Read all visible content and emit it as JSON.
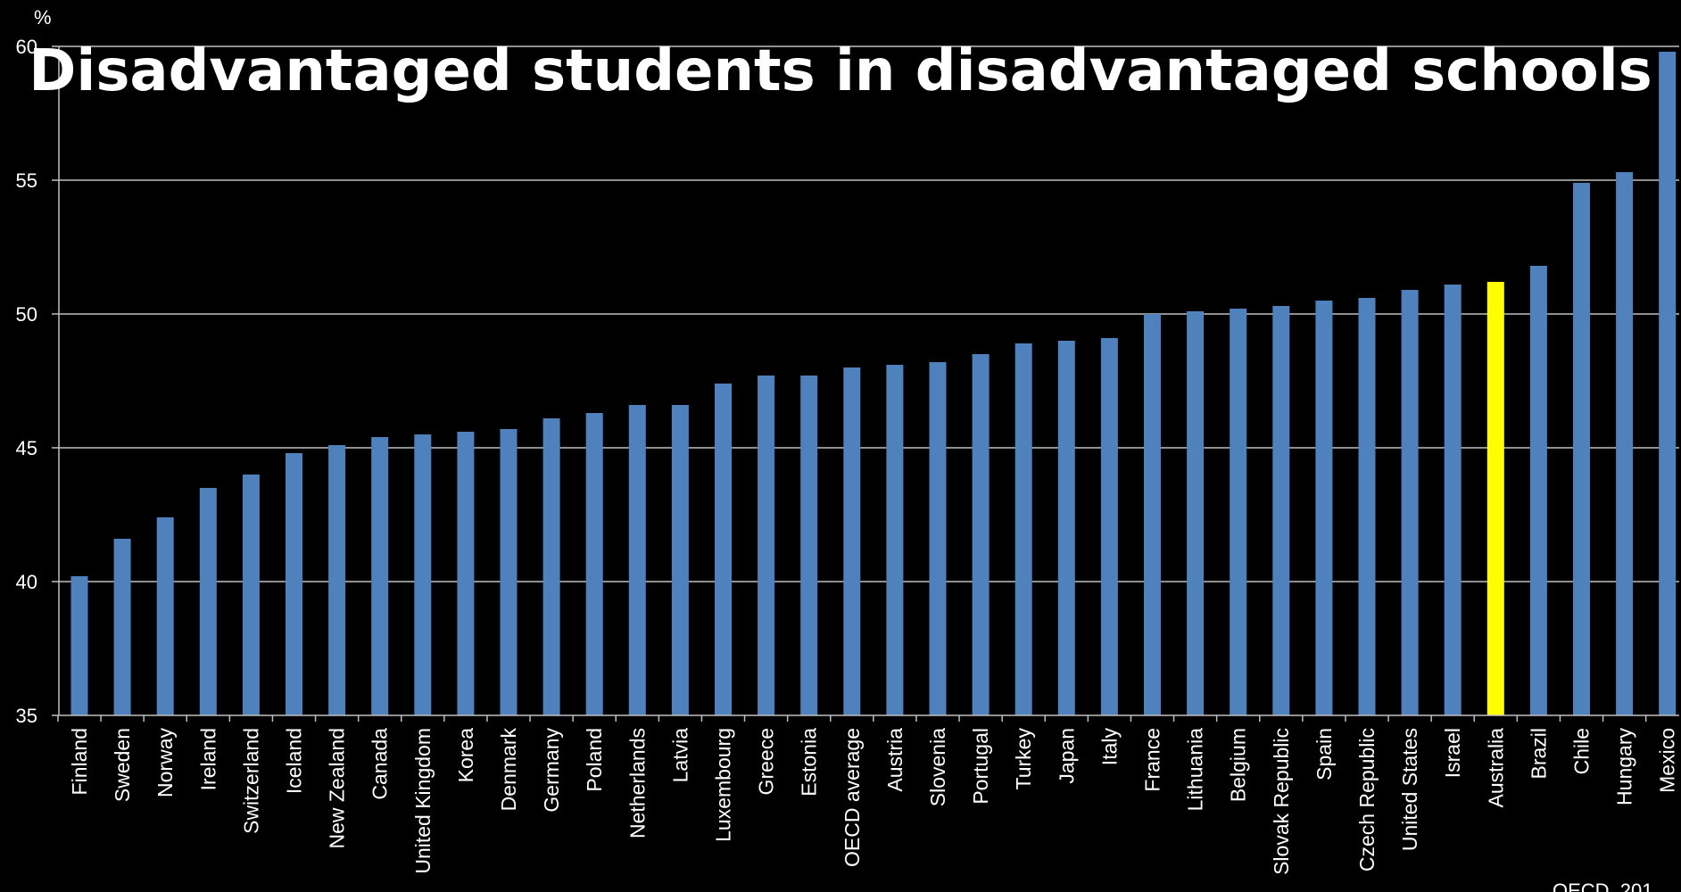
{
  "chart_data": {
    "type": "bar",
    "title": "Disadvantaged students in disadvantaged schools",
    "unit": "%",
    "source": "OECD, 201",
    "ylim": [
      35,
      60
    ],
    "yticks": [
      35,
      40,
      45,
      50,
      55,
      60
    ],
    "grid": true,
    "categories": [
      "Finland",
      "Sweden",
      "Norway",
      "Ireland",
      "Switzerland",
      "Iceland",
      "New Zealand",
      "Canada",
      "United Kingdom",
      "Korea",
      "Denmark",
      "Germany",
      "Poland",
      "Netherlands",
      "Latvia",
      "Luxembourg",
      "Greece",
      "Estonia",
      "OECD average",
      "Austria",
      "Slovenia",
      "Portugal",
      "Turkey",
      "Japan",
      "Italy",
      "France",
      "Lithuania",
      "Belgium",
      "Slovak Republic",
      "Spain",
      "Czech Republic",
      "United States",
      "Israel",
      "Australia",
      "Brazil",
      "Chile",
      "Hungary",
      "Mexico"
    ],
    "values": [
      40.2,
      41.6,
      42.4,
      43.5,
      44.0,
      44.8,
      45.1,
      45.4,
      45.5,
      45.6,
      45.7,
      46.1,
      46.3,
      46.6,
      46.6,
      47.4,
      47.7,
      47.7,
      48.0,
      48.1,
      48.2,
      48.5,
      48.9,
      49.0,
      49.1,
      50.0,
      50.1,
      50.2,
      50.3,
      50.5,
      50.6,
      50.9,
      51.1,
      51.2,
      51.8,
      54.9,
      55.3,
      59.8
    ],
    "highlight": "Australia",
    "colors": {
      "bar": "#4f81bd",
      "highlight": "#ffff00",
      "grid": "#bfbfbf",
      "background": "#000000",
      "text": "#ffffff"
    }
  }
}
